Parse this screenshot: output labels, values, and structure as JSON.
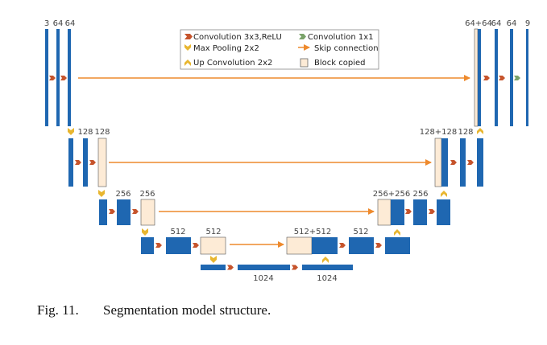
{
  "colors": {
    "conv_block": "#1f67b1",
    "copied_block": "#fdebd6",
    "conv_arrow": "#c6542c",
    "conv1x1_arrow": "#7aa36a",
    "pool_arrow": "#e8b630",
    "upconv_arrow": "#e8b630",
    "skip_line": "#ee8a2d",
    "text": "#444444"
  },
  "legend": {
    "conv3x3": "Convolution 3x3,ReLU",
    "conv1x1": "Convolution 1x1",
    "maxpool": "Max Pooling 2x2",
    "skip": "Skip connection",
    "upconv": "Up Convolution 2x2",
    "copied": "Block copied"
  },
  "channel_labels": {
    "enc1": [
      "3",
      "64",
      "64"
    ],
    "enc2": [
      "128",
      "128"
    ],
    "enc3": [
      "256",
      "256"
    ],
    "enc4": [
      "512",
      "512"
    ],
    "bottleneck": [
      "1024",
      "1024"
    ],
    "dec4": [
      "512+512",
      "512"
    ],
    "dec3": [
      "256+256",
      "256"
    ],
    "dec2": [
      "128+128",
      "128"
    ],
    "dec1": [
      "64+64",
      "64",
      "64",
      "9"
    ]
  },
  "caption": {
    "label": "Fig. 11.",
    "text": "Segmentation model structure."
  }
}
